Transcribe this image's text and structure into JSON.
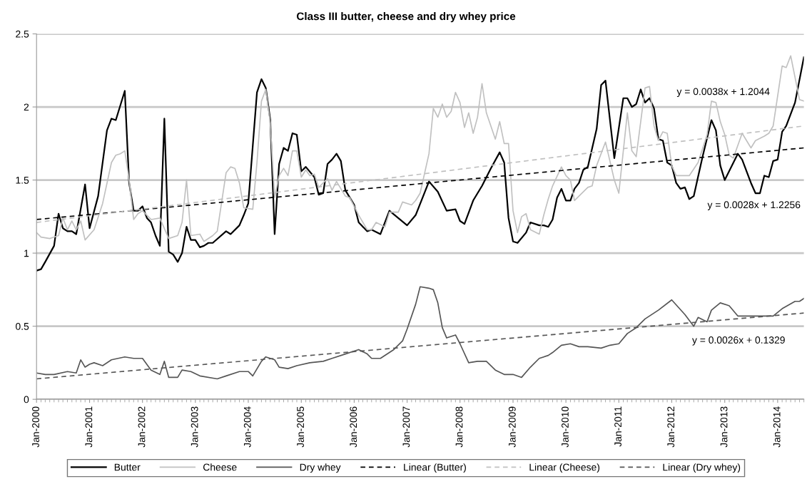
{
  "chart_data": {
    "type": "line",
    "title": "Class III butter, cheese and dry whey price",
    "xlim": [
      "2000-01",
      "2014-07"
    ],
    "xticks": [
      {
        "value": "2000-01",
        "label": "Jan-2000"
      },
      {
        "value": "2001-01",
        "label": "Jan-2001"
      },
      {
        "value": "2002-01",
        "label": "Jan-2002"
      },
      {
        "value": "2003-01",
        "label": "Jan-2003"
      },
      {
        "value": "2004-01",
        "label": "Jan-2004"
      },
      {
        "value": "2005-01",
        "label": "Jan-2005"
      },
      {
        "value": "2006-01",
        "label": "Jan-2006"
      },
      {
        "value": "2007-01",
        "label": "Jan-2007"
      },
      {
        "value": "2008-01",
        "label": "Jan-2008"
      },
      {
        "value": "2009-01",
        "label": "Jan-2009"
      },
      {
        "value": "2010-01",
        "label": "Jan-2010"
      },
      {
        "value": "2011-01",
        "label": "Jan-2011"
      },
      {
        "value": "2012-01",
        "label": "Jan-2012"
      },
      {
        "value": "2013-01",
        "label": "Jan-2013"
      },
      {
        "value": "2014-01",
        "label": "Jan-2014"
      }
    ],
    "ylim": [
      0,
      2.5
    ],
    "yticks": [
      0,
      0.5,
      1,
      1.5,
      2,
      2.5
    ],
    "grid": "y",
    "legend": "bottom",
    "series": [
      {
        "name": "Butter",
        "color": "#000000",
        "x": [
          "2000-01",
          "2000-02",
          "2000-03",
          "2000-05",
          "2000-06",
          "2000-07",
          "2000-08",
          "2000-09",
          "2000-10",
          "2000-12",
          "2001-01",
          "2001-03",
          "2001-05",
          "2001-06",
          "2001-07",
          "2001-09",
          "2001-10",
          "2001-11",
          "2001-12",
          "2002-01",
          "2002-02",
          "2002-03",
          "2002-04",
          "2002-05",
          "2002-06",
          "2002-07",
          "2002-08",
          "2002-09",
          "2002-10",
          "2002-11",
          "2002-12",
          "2003-01",
          "2003-02",
          "2003-03",
          "2003-04",
          "2003-05",
          "2003-08",
          "2003-09",
          "2003-11",
          "2003-12",
          "2004-01",
          "2004-03",
          "2004-04",
          "2004-05",
          "2004-06",
          "2004-07",
          "2004-08",
          "2004-09",
          "2004-10",
          "2004-11",
          "2004-12",
          "2005-01",
          "2005-02",
          "2005-04",
          "2005-05",
          "2005-06",
          "2005-07",
          "2005-08",
          "2005-09",
          "2005-10",
          "2005-11",
          "2006-01",
          "2006-02",
          "2006-04",
          "2006-05",
          "2006-07",
          "2006-09",
          "2006-11",
          "2007-01",
          "2007-03",
          "2007-06",
          "2007-08",
          "2007-10",
          "2007-12",
          "2008-01",
          "2008-02",
          "2008-04",
          "2008-06",
          "2008-08",
          "2008-10",
          "2008-11",
          "2008-12",
          "2009-01",
          "2009-02",
          "2009-04",
          "2009-05",
          "2009-07",
          "2009-08",
          "2009-09",
          "2009-10",
          "2009-11",
          "2009-12",
          "2010-01",
          "2010-02",
          "2010-03",
          "2010-04",
          "2010-05",
          "2010-06",
          "2010-08",
          "2010-09",
          "2010-10",
          "2010-12",
          "2011-02",
          "2011-03",
          "2011-04",
          "2011-05",
          "2011-06",
          "2011-07",
          "2011-08",
          "2011-09",
          "2011-10",
          "2011-11",
          "2011-12",
          "2012-01",
          "2012-02",
          "2012-03",
          "2012-04",
          "2012-05",
          "2012-06",
          "2012-08",
          "2012-10",
          "2012-11",
          "2012-12",
          "2013-01",
          "2013-04",
          "2013-05",
          "2013-07",
          "2013-08",
          "2013-09",
          "2013-10",
          "2013-11",
          "2013-12",
          "2014-01",
          "2014-02",
          "2014-03",
          "2014-05",
          "2014-07"
        ],
        "values": [
          0.88,
          0.89,
          0.94,
          1.05,
          1.27,
          1.17,
          1.15,
          1.15,
          1.13,
          1.47,
          1.17,
          1.39,
          1.84,
          1.92,
          1.91,
          2.11,
          1.48,
          1.29,
          1.29,
          1.32,
          1.24,
          1.21,
          1.12,
          1.05,
          1.92,
          1.01,
          0.99,
          0.94,
          1.0,
          1.18,
          1.09,
          1.09,
          1.04,
          1.05,
          1.07,
          1.07,
          1.15,
          1.13,
          1.19,
          1.26,
          1.34,
          2.1,
          2.19,
          2.13,
          1.91,
          1.13,
          1.61,
          1.72,
          1.7,
          1.82,
          1.81,
          1.56,
          1.59,
          1.52,
          1.4,
          1.41,
          1.61,
          1.64,
          1.68,
          1.63,
          1.43,
          1.33,
          1.21,
          1.15,
          1.16,
          1.13,
          1.29,
          1.24,
          1.19,
          1.26,
          1.49,
          1.42,
          1.29,
          1.3,
          1.22,
          1.2,
          1.36,
          1.46,
          1.58,
          1.69,
          1.62,
          1.24,
          1.08,
          1.07,
          1.14,
          1.21,
          1.19,
          1.19,
          1.18,
          1.23,
          1.38,
          1.44,
          1.36,
          1.36,
          1.44,
          1.48,
          1.57,
          1.59,
          1.85,
          2.15,
          2.18,
          1.65,
          2.06,
          2.06,
          2.0,
          2.02,
          2.12,
          2.03,
          2.06,
          1.99,
          1.78,
          1.77,
          1.62,
          1.6,
          1.48,
          1.44,
          1.45,
          1.37,
          1.39,
          1.66,
          1.91,
          1.84,
          1.6,
          1.5,
          1.68,
          1.64,
          1.48,
          1.41,
          1.41,
          1.53,
          1.52,
          1.63,
          1.64,
          1.83,
          1.87,
          2.03,
          2.34
        ]
      },
      {
        "name": "Cheese",
        "color": "#c0c0c0",
        "x": [
          "2000-01",
          "2000-02",
          "2000-04",
          "2000-05",
          "2000-06",
          "2000-07",
          "2000-08",
          "2000-09",
          "2000-10",
          "2000-11",
          "2000-12",
          "2001-02",
          "2001-04",
          "2001-06",
          "2001-07",
          "2001-08",
          "2001-09",
          "2001-10",
          "2001-11",
          "2001-12",
          "2002-01",
          "2002-03",
          "2002-05",
          "2002-07",
          "2002-09",
          "2002-10",
          "2002-11",
          "2002-12",
          "2003-02",
          "2003-03",
          "2003-05",
          "2003-06",
          "2003-08",
          "2003-09",
          "2003-10",
          "2003-11",
          "2003-12",
          "2004-02",
          "2004-03",
          "2004-04",
          "2004-05",
          "2004-06",
          "2004-07",
          "2004-08",
          "2004-09",
          "2004-10",
          "2004-11",
          "2004-12",
          "2005-01",
          "2005-02",
          "2005-03",
          "2005-04",
          "2005-05",
          "2005-07",
          "2005-08",
          "2005-09",
          "2005-11",
          "2005-12",
          "2006-02",
          "2006-04",
          "2006-05",
          "2006-06",
          "2006-08",
          "2006-09",
          "2006-11",
          "2006-12",
          "2007-02",
          "2007-03",
          "2007-04",
          "2007-06",
          "2007-07",
          "2007-08",
          "2007-09",
          "2007-10",
          "2007-11",
          "2007-12",
          "2008-01",
          "2008-02",
          "2008-03",
          "2008-04",
          "2008-05",
          "2008-06",
          "2008-07",
          "2008-09",
          "2008-10",
          "2008-11",
          "2008-12",
          "2009-01",
          "2009-02",
          "2009-03",
          "2009-04",
          "2009-05",
          "2009-07",
          "2009-08",
          "2009-09",
          "2009-10",
          "2009-12",
          "2010-01",
          "2010-02",
          "2010-03",
          "2010-04",
          "2010-06",
          "2010-07",
          "2010-08",
          "2010-10",
          "2010-12",
          "2011-01",
          "2011-03",
          "2011-04",
          "2011-05",
          "2011-07",
          "2011-08",
          "2011-09",
          "2011-10",
          "2011-11",
          "2011-12",
          "2012-01",
          "2012-02",
          "2012-04",
          "2012-05",
          "2012-07",
          "2012-09",
          "2012-10",
          "2012-11",
          "2012-12",
          "2013-01",
          "2013-02",
          "2013-03",
          "2013-05",
          "2013-07",
          "2013-08",
          "2013-10",
          "2013-11",
          "2013-12",
          "2014-02",
          "2014-03",
          "2014-04",
          "2014-06",
          "2014-07"
        ],
        "values": [
          1.14,
          1.11,
          1.1,
          1.11,
          1.12,
          1.24,
          1.16,
          1.22,
          1.16,
          1.22,
          1.09,
          1.16,
          1.34,
          1.62,
          1.67,
          1.68,
          1.7,
          1.5,
          1.23,
          1.27,
          1.29,
          1.23,
          1.24,
          1.1,
          1.12,
          1.21,
          1.5,
          1.12,
          1.13,
          1.08,
          1.12,
          1.15,
          1.55,
          1.59,
          1.58,
          1.48,
          1.31,
          1.3,
          1.62,
          2.04,
          2.12,
          1.89,
          1.38,
          1.53,
          1.58,
          1.53,
          1.7,
          1.7,
          1.52,
          1.57,
          1.53,
          1.54,
          1.45,
          1.51,
          1.43,
          1.49,
          1.39,
          1.38,
          1.26,
          1.16,
          1.16,
          1.21,
          1.18,
          1.28,
          1.28,
          1.35,
          1.33,
          1.36,
          1.41,
          1.68,
          1.99,
          1.93,
          2.02,
          1.93,
          1.97,
          2.1,
          2.03,
          1.86,
          1.96,
          1.82,
          1.93,
          2.16,
          1.96,
          1.78,
          1.9,
          1.75,
          1.75,
          1.29,
          1.14,
          1.25,
          1.27,
          1.16,
          1.13,
          1.26,
          1.37,
          1.46,
          1.59,
          1.53,
          1.5,
          1.36,
          1.39,
          1.45,
          1.46,
          1.6,
          1.76,
          1.5,
          1.41,
          1.96,
          1.7,
          1.66,
          2.13,
          2.14,
          1.87,
          1.77,
          1.83,
          1.82,
          1.6,
          1.53,
          1.53,
          1.53,
          1.62,
          1.81,
          2.04,
          2.03,
          1.9,
          1.81,
          1.67,
          1.65,
          1.82,
          1.72,
          1.77,
          1.8,
          1.82,
          1.87,
          2.28,
          2.27,
          2.35,
          2.05,
          2.04
        ]
      },
      {
        "name": "Dry whey",
        "color": "#555555",
        "x": [
          "2000-01",
          "2000-03",
          "2000-05",
          "2000-08",
          "2000-10",
          "2000-11",
          "2000-12",
          "2001-01",
          "2001-02",
          "2001-04",
          "2001-06",
          "2001-09",
          "2001-11",
          "2002-01",
          "2002-03",
          "2002-05",
          "2002-06",
          "2002-07",
          "2002-09",
          "2002-10",
          "2002-12",
          "2003-02",
          "2003-06",
          "2003-08",
          "2003-11",
          "2004-01",
          "2004-02",
          "2004-04",
          "2004-05",
          "2004-07",
          "2004-08",
          "2004-10",
          "2004-12",
          "2005-03",
          "2005-06",
          "2005-08",
          "2005-11",
          "2006-01",
          "2006-02",
          "2006-04",
          "2006-05",
          "2006-07",
          "2006-10",
          "2006-12",
          "2007-01",
          "2007-03",
          "2007-04",
          "2007-06",
          "2007-07",
          "2007-08",
          "2007-09",
          "2007-10",
          "2007-12",
          "2008-01",
          "2008-03",
          "2008-05",
          "2008-07",
          "2008-09",
          "2008-11",
          "2009-01",
          "2009-03",
          "2009-05",
          "2009-07",
          "2009-09",
          "2009-10",
          "2009-12",
          "2010-02",
          "2010-04",
          "2010-06",
          "2010-09",
          "2010-11",
          "2011-01",
          "2011-03",
          "2011-05",
          "2011-07",
          "2011-10",
          "2012-01",
          "2012-04",
          "2012-06",
          "2012-07",
          "2012-09",
          "2012-10",
          "2012-12",
          "2013-02",
          "2013-04",
          "2013-07",
          "2013-10",
          "2013-12",
          "2014-02",
          "2014-05",
          "2014-06",
          "2014-07"
        ],
        "values": [
          0.18,
          0.17,
          0.17,
          0.19,
          0.18,
          0.27,
          0.22,
          0.24,
          0.25,
          0.23,
          0.27,
          0.29,
          0.28,
          0.28,
          0.2,
          0.17,
          0.26,
          0.15,
          0.15,
          0.2,
          0.19,
          0.16,
          0.14,
          0.16,
          0.19,
          0.19,
          0.16,
          0.26,
          0.29,
          0.27,
          0.22,
          0.21,
          0.23,
          0.25,
          0.26,
          0.28,
          0.31,
          0.33,
          0.34,
          0.31,
          0.28,
          0.28,
          0.34,
          0.4,
          0.48,
          0.65,
          0.77,
          0.76,
          0.75,
          0.66,
          0.49,
          0.42,
          0.44,
          0.38,
          0.25,
          0.26,
          0.26,
          0.2,
          0.17,
          0.17,
          0.15,
          0.22,
          0.28,
          0.3,
          0.32,
          0.37,
          0.38,
          0.36,
          0.36,
          0.35,
          0.37,
          0.38,
          0.45,
          0.49,
          0.55,
          0.61,
          0.68,
          0.58,
          0.5,
          0.56,
          0.53,
          0.61,
          0.66,
          0.64,
          0.57,
          0.57,
          0.57,
          0.57,
          0.62,
          0.67,
          0.67,
          0.69
        ]
      },
      {
        "name": "Linear (Butter)",
        "color": "#000000",
        "line_style": "dashed",
        "x": [
          "2000-01",
          "2014-07"
        ],
        "values": [
          1.23,
          1.72
        ]
      },
      {
        "name": "Linear (Cheese)",
        "color": "#c0c0c0",
        "line_style": "dashed",
        "x": [
          "2000-01",
          "2014-07"
        ],
        "values": [
          1.21,
          1.87
        ]
      },
      {
        "name": "Linear (Dry whey)",
        "color": "#555555",
        "line_style": "dashed",
        "x": [
          "2000-01",
          "2014-07"
        ],
        "values": [
          0.14,
          0.59
        ]
      }
    ],
    "annotations": [
      "y = 0.0038x + 1.2044",
      "y = 0.0028x + 1.2256",
      "y = 0.0026x + 0.1329"
    ]
  }
}
